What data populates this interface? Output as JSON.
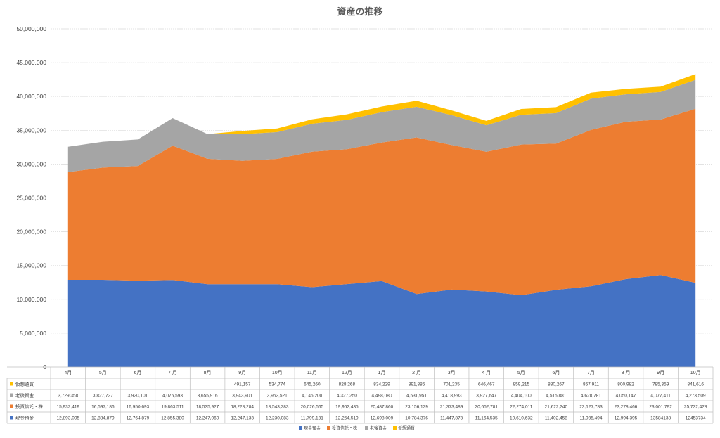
{
  "chart_data": {
    "type": "area",
    "stacked": true,
    "title": "資産の推移",
    "categories": [
      "4月",
      "5月",
      "6月",
      "7月",
      "8月",
      "9月",
      "10月",
      "11月",
      "12月",
      "1月",
      "2月",
      "3月",
      "4月",
      "5月",
      "6月",
      "7月",
      "8月",
      "9月",
      "10月"
    ],
    "category_labels": [
      "4月",
      "5月",
      "6月",
      "7 月",
      "8月",
      "9月",
      "10月",
      "11月",
      "12月",
      "1月",
      "2 月",
      "3月",
      "4 月",
      "5月",
      "6月",
      "7月",
      "8 月",
      "9月",
      "10月"
    ],
    "ylim": [
      0,
      50000000
    ],
    "ytick_labels": [
      "0",
      "5,000,000",
      "10,000,000",
      "15,000,000",
      "20,000,000",
      "25,000,000",
      "30,000,000",
      "35,000,000",
      "40,000,000",
      "45,000,000",
      "50,000,000"
    ],
    "grid": true,
    "legend_position": "bottom",
    "series": [
      {
        "name": "現金預金",
        "color": "#4472C4",
        "values": [
          12893095,
          12884879,
          12764879,
          12855380,
          12247060,
          12247133,
          12230083,
          11799131,
          12254519,
          12698009,
          10784376,
          11447873,
          11164535,
          10610632,
          11402458,
          11935494,
          12994395,
          13584138,
          12453734
        ],
        "labels": [
          "12,893,095",
          "12,884,879",
          "12,764,879",
          "12,855,380",
          "12,247,060",
          "12,247,133",
          "12,230,083",
          "11,799,131",
          "12,254,519",
          "12,698,009",
          "10,784,376",
          "11,447,873",
          "11,164,535",
          "10,610,632",
          "11,402,458",
          "11,935,494",
          "12,994,395",
          "13584138",
          "12453734"
        ]
      },
      {
        "name": "投資信託・株",
        "color": "#ED7D31",
        "values": [
          15932419,
          16597186,
          16950693,
          19863511,
          18535927,
          18228284,
          18543283,
          20026565,
          19952435,
          20487860,
          23156129,
          21373489,
          20652781,
          22274011,
          21622240,
          23127783,
          23278466,
          23001792,
          25732428
        ],
        "labels": [
          "15,932,419",
          "16,597,186",
          "16,950,693",
          "19,863,511",
          "18,535,927",
          "18,228,284",
          "18,543,283",
          "20,026,565",
          "19,952,435",
          "20,487,860",
          "23,156,129",
          "21,373,489",
          "20,652,781",
          "22,274,011",
          "21,622,240",
          "23,127,783",
          "23,278,466",
          "23,001,792",
          "25,732,428"
        ]
      },
      {
        "name": "老後資金",
        "color": "#A5A5A5",
        "values": [
          3729358,
          3827727,
          3920101,
          4076593,
          3655916,
          3943901,
          3952521,
          4145200,
          4327250,
          4498080,
          4531951,
          4418993,
          3927647,
          4404100,
          4515881,
          4628781,
          4050147,
          4077411,
          4273509
        ],
        "labels": [
          "3,729,358",
          "3,827,727",
          "3,920,101",
          "4,076,593",
          "3,655,916",
          "3,943,901",
          "3,952,521",
          "4,145,200",
          "4,327,250",
          "4,498,080",
          "4,531,951",
          "4,418,993",
          "3,927,647",
          "4,404,100",
          "4,515,881",
          "4,628,781",
          "4,050,147",
          "4,077,411",
          "4,273,509"
        ]
      },
      {
        "name": "仮想通貨",
        "color": "#FFC000",
        "values": [
          0,
          0,
          0,
          0,
          0,
          491157,
          534774,
          645260,
          828268,
          834229,
          891885,
          701235,
          646467,
          859215,
          880267,
          867911,
          800982,
          785359,
          841616
        ],
        "labels": [
          "",
          "",
          "",
          "",
          "",
          "491,157",
          "534,774",
          "645,260",
          "828,268",
          "834,229",
          "891,885",
          "701,235",
          "646,467",
          "859,215",
          "880,267",
          "867,911",
          "800,982",
          "785,359",
          "841,616"
        ]
      }
    ],
    "table_row_labels": [
      "仮想通貨",
      "老後資金",
      "投資信託・株",
      "現金預金"
    ]
  }
}
